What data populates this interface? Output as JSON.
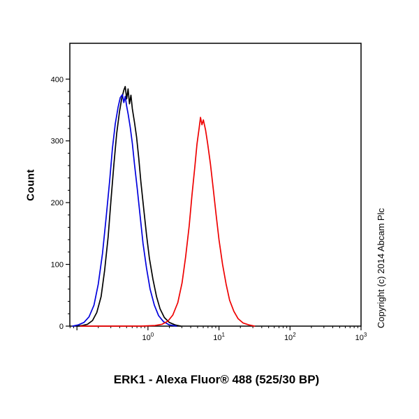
{
  "annotations": {
    "copyright": "Copyright (c) 2014 Abcam Plc"
  },
  "chart_data": {
    "type": "line",
    "chart_kind": "flow-cytometry-histogram",
    "title": "ERK1 - Alexa Fluor® 488 (525/30 BP)",
    "xlabel": "",
    "ylabel": "Count",
    "xscale": "log10",
    "xlim_log10": [
      -1.1,
      3.0
    ],
    "ylim": [
      0,
      458
    ],
    "yticks": [
      0,
      100,
      200,
      300,
      400
    ],
    "ytick_minor_step": 20,
    "xtick_exponents_labeled": [
      0,
      1,
      2,
      3
    ],
    "grid": false,
    "legend": "none",
    "frame_color": "#000000",
    "series": [
      {
        "name": "black",
        "color": "#000000",
        "points": [
          [
            -1.0,
            0
          ],
          [
            -0.92,
            1
          ],
          [
            -0.85,
            3
          ],
          [
            -0.78,
            9
          ],
          [
            -0.72,
            22
          ],
          [
            -0.66,
            48
          ],
          [
            -0.61,
            90
          ],
          [
            -0.56,
            145
          ],
          [
            -0.52,
            205
          ],
          [
            -0.48,
            262
          ],
          [
            -0.44,
            312
          ],
          [
            -0.4,
            348
          ],
          [
            -0.37,
            368
          ],
          [
            -0.34,
            382
          ],
          [
            -0.32,
            388
          ],
          [
            -0.3,
            368
          ],
          [
            -0.28,
            384
          ],
          [
            -0.26,
            360
          ],
          [
            -0.24,
            374
          ],
          [
            -0.22,
            352
          ],
          [
            -0.19,
            330
          ],
          [
            -0.16,
            306
          ],
          [
            -0.13,
            272
          ],
          [
            -0.1,
            234
          ],
          [
            -0.06,
            190
          ],
          [
            -0.02,
            148
          ],
          [
            0.02,
            110
          ],
          [
            0.07,
            76
          ],
          [
            0.12,
            48
          ],
          [
            0.17,
            28
          ],
          [
            0.23,
            14
          ],
          [
            0.3,
            6
          ],
          [
            0.38,
            2
          ],
          [
            0.46,
            0
          ]
        ]
      },
      {
        "name": "blue",
        "color": "#0000dd",
        "points": [
          [
            -1.06,
            0
          ],
          [
            -0.98,
            2
          ],
          [
            -0.9,
            6
          ],
          [
            -0.83,
            15
          ],
          [
            -0.76,
            34
          ],
          [
            -0.7,
            68
          ],
          [
            -0.64,
            118
          ],
          [
            -0.59,
            175
          ],
          [
            -0.54,
            235
          ],
          [
            -0.5,
            288
          ],
          [
            -0.46,
            328
          ],
          [
            -0.42,
            355
          ],
          [
            -0.39,
            370
          ],
          [
            -0.36,
            375
          ],
          [
            -0.34,
            362
          ],
          [
            -0.32,
            372
          ],
          [
            -0.3,
            356
          ],
          [
            -0.28,
            344
          ],
          [
            -0.25,
            322
          ],
          [
            -0.22,
            296
          ],
          [
            -0.19,
            262
          ],
          [
            -0.15,
            222
          ],
          [
            -0.11,
            178
          ],
          [
            -0.07,
            134
          ],
          [
            -0.02,
            94
          ],
          [
            0.03,
            60
          ],
          [
            0.09,
            34
          ],
          [
            0.15,
            17
          ],
          [
            0.22,
            7
          ],
          [
            0.3,
            2
          ],
          [
            0.4,
            0
          ]
        ]
      },
      {
        "name": "red",
        "color": "#ee0000",
        "points": [
          [
            -0.95,
            0
          ],
          [
            -0.5,
            0
          ],
          [
            -0.1,
            0
          ],
          [
            0.1,
            1
          ],
          [
            0.2,
            3
          ],
          [
            0.28,
            8
          ],
          [
            0.35,
            18
          ],
          [
            0.42,
            38
          ],
          [
            0.48,
            70
          ],
          [
            0.53,
            112
          ],
          [
            0.58,
            162
          ],
          [
            0.62,
            212
          ],
          [
            0.66,
            258
          ],
          [
            0.69,
            295
          ],
          [
            0.72,
            320
          ],
          [
            0.74,
            338
          ],
          [
            0.76,
            326
          ],
          [
            0.78,
            334
          ],
          [
            0.81,
            318
          ],
          [
            0.84,
            296
          ],
          [
            0.88,
            262
          ],
          [
            0.92,
            222
          ],
          [
            0.96,
            180
          ],
          [
            1.0,
            140
          ],
          [
            1.05,
            100
          ],
          [
            1.1,
            68
          ],
          [
            1.15,
            42
          ],
          [
            1.21,
            24
          ],
          [
            1.27,
            12
          ],
          [
            1.34,
            5
          ],
          [
            1.42,
            2
          ],
          [
            1.5,
            0
          ]
        ]
      }
    ]
  }
}
